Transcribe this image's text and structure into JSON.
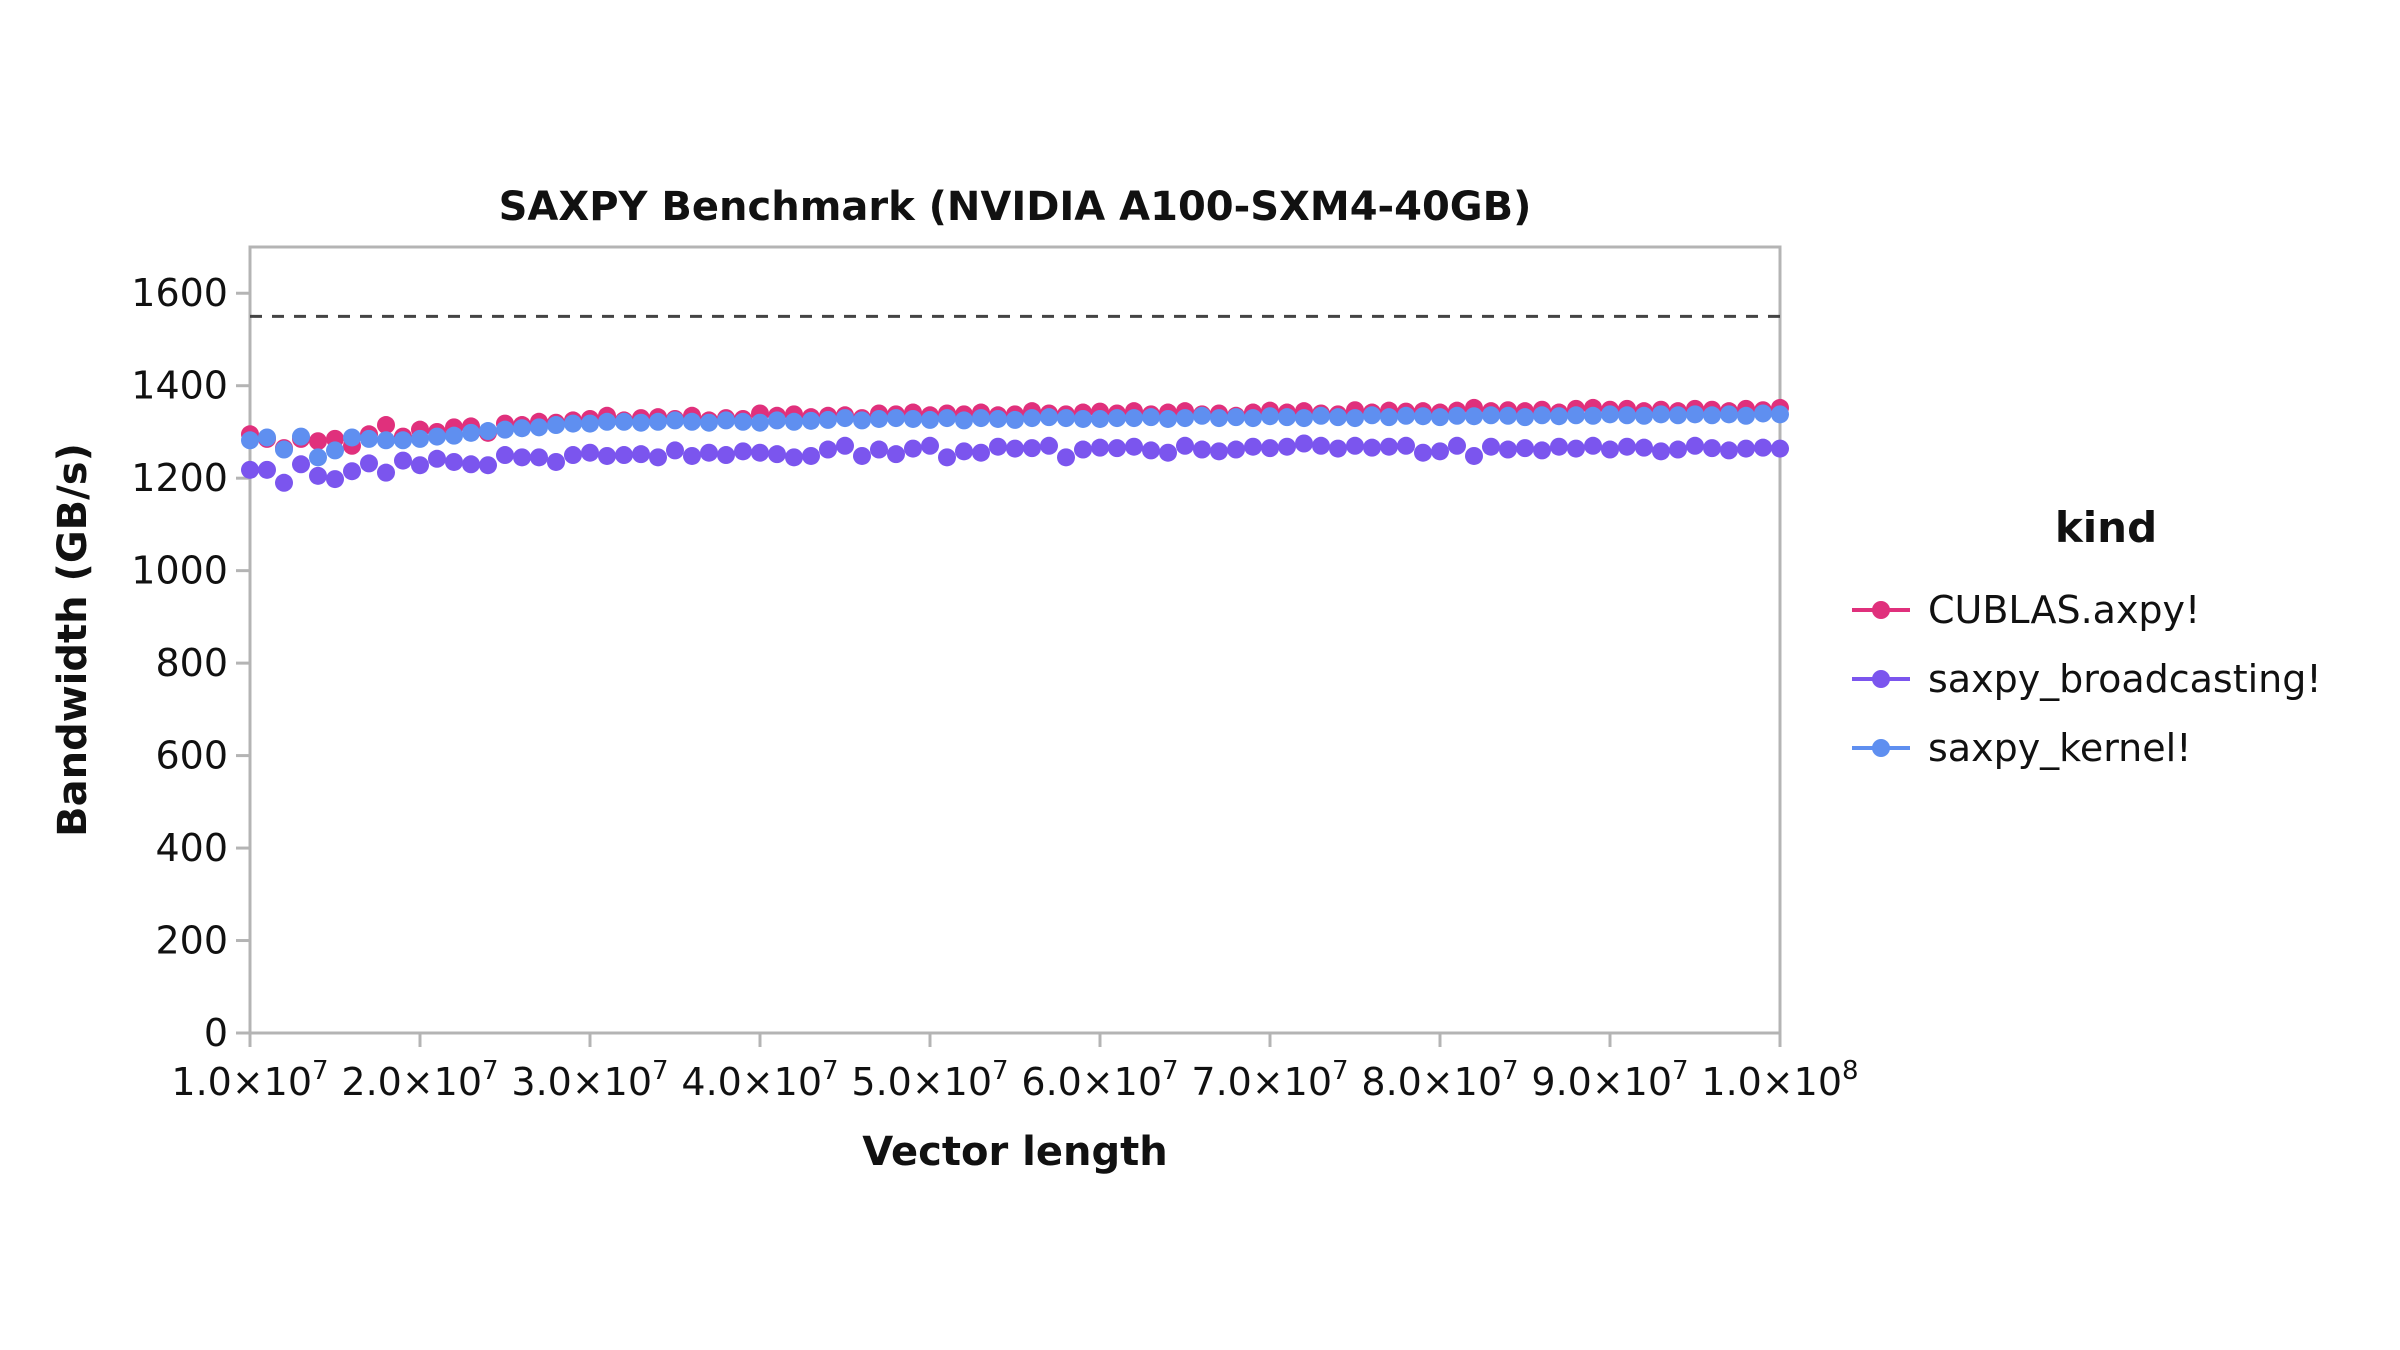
{
  "chart_data": {
    "type": "scatter",
    "title": "SAXPY Benchmark (NVIDIA A100-SXM4-40GB)",
    "xlabel": "Vector length",
    "ylabel": "Bandwidth (GB/s)",
    "xlim": [
      10000000,
      100000000
    ],
    "ylim": [
      0,
      1700
    ],
    "x_ticks": [
      10000000,
      20000000,
      30000000,
      40000000,
      50000000,
      60000000,
      70000000,
      80000000,
      90000000,
      100000000
    ],
    "x_tick_labels": [
      {
        "mantissa": "1.0×10",
        "exp": "7"
      },
      {
        "mantissa": "2.0×10",
        "exp": "7"
      },
      {
        "mantissa": "3.0×10",
        "exp": "7"
      },
      {
        "mantissa": "4.0×10",
        "exp": "7"
      },
      {
        "mantissa": "5.0×10",
        "exp": "7"
      },
      {
        "mantissa": "6.0×10",
        "exp": "7"
      },
      {
        "mantissa": "7.0×10",
        "exp": "7"
      },
      {
        "mantissa": "8.0×10",
        "exp": "7"
      },
      {
        "mantissa": "9.0×10",
        "exp": "7"
      },
      {
        "mantissa": "1.0×10",
        "exp": "8"
      }
    ],
    "y_ticks": [
      0,
      200,
      400,
      600,
      800,
      1000,
      1200,
      1400,
      1600
    ],
    "y_tick_labels": [
      "0",
      "200",
      "400",
      "600",
      "800",
      "1000",
      "1200",
      "1400",
      "1600"
    ],
    "reference_line": {
      "y": 1550,
      "style": "dashed"
    },
    "grid": false,
    "legend": {
      "title": "kind",
      "placement": "right"
    },
    "x": [
      10000000,
      11000000,
      12000000,
      13000000,
      14000000,
      15000000,
      16000000,
      17000000,
      18000000,
      19000000,
      20000000,
      21000000,
      22000000,
      23000000,
      24000000,
      25000000,
      26000000,
      27000000,
      28000000,
      29000000,
      30000000,
      31000000,
      32000000,
      33000000,
      34000000,
      35000000,
      36000000,
      37000000,
      38000000,
      39000000,
      40000000,
      41000000,
      42000000,
      43000000,
      44000000,
      45000000,
      46000000,
      47000000,
      48000000,
      49000000,
      50000000,
      51000000,
      52000000,
      53000000,
      54000000,
      55000000,
      56000000,
      57000000,
      58000000,
      59000000,
      60000000,
      61000000,
      62000000,
      63000000,
      64000000,
      65000000,
      66000000,
      67000000,
      68000000,
      69000000,
      70000000,
      71000000,
      72000000,
      73000000,
      74000000,
      75000000,
      76000000,
      77000000,
      78000000,
      79000000,
      80000000,
      81000000,
      82000000,
      83000000,
      84000000,
      85000000,
      86000000,
      87000000,
      88000000,
      89000000,
      90000000,
      91000000,
      92000000,
      93000000,
      94000000,
      95000000,
      96000000,
      97000000,
      98000000,
      99000000,
      100000000
    ],
    "series": [
      {
        "name": "CUBLAS.axpy!",
        "color": "#e0307c",
        "values": [
          1295,
          1285,
          1265,
          1285,
          1280,
          1285,
          1270,
          1295,
          1315,
          1290,
          1305,
          1300,
          1310,
          1312,
          1298,
          1318,
          1315,
          1322,
          1320,
          1325,
          1328,
          1335,
          1325,
          1330,
          1332,
          1328,
          1335,
          1325,
          1330,
          1328,
          1340,
          1335,
          1338,
          1332,
          1335,
          1336,
          1330,
          1340,
          1338,
          1342,
          1336,
          1340,
          1338,
          1342,
          1336,
          1338,
          1345,
          1340,
          1338,
          1342,
          1344,
          1340,
          1345,
          1338,
          1342,
          1345,
          1338,
          1340,
          1335,
          1342,
          1346,
          1342,
          1345,
          1340,
          1338,
          1347,
          1342,
          1346,
          1344,
          1345,
          1342,
          1346,
          1352,
          1345,
          1347,
          1345,
          1348,
          1342,
          1350,
          1352,
          1348,
          1350,
          1345,
          1348,
          1345,
          1350,
          1348,
          1345,
          1350,
          1347,
          1352
        ]
      },
      {
        "name": "saxpy_broadcasting!",
        "color": "#7b55ee",
        "values": [
          1218,
          1218,
          1190,
          1230,
          1205,
          1198,
          1215,
          1232,
          1212,
          1238,
          1228,
          1242,
          1235,
          1230,
          1228,
          1250,
          1245,
          1245,
          1235,
          1250,
          1255,
          1248,
          1250,
          1252,
          1245,
          1260,
          1248,
          1255,
          1250,
          1258,
          1255,
          1252,
          1245,
          1248,
          1262,
          1270,
          1248,
          1262,
          1252,
          1264,
          1270,
          1245,
          1258,
          1255,
          1268,
          1264,
          1265,
          1270,
          1245,
          1262,
          1266,
          1265,
          1268,
          1260,
          1255,
          1270,
          1262,
          1258,
          1262,
          1268,
          1265,
          1268,
          1275,
          1270,
          1264,
          1270,
          1266,
          1268,
          1270,
          1255,
          1258,
          1270,
          1248,
          1268,
          1262,
          1265,
          1260,
          1268,
          1264,
          1270,
          1262,
          1268,
          1266,
          1258,
          1262,
          1270,
          1265,
          1260,
          1264,
          1266,
          1264
        ]
      },
      {
        "name": "saxpy_kernel!",
        "color": "#5f8ff0",
        "values": [
          1282,
          1288,
          1262,
          1290,
          1245,
          1260,
          1288,
          1285,
          1282,
          1282,
          1285,
          1290,
          1292,
          1298,
          1302,
          1305,
          1308,
          1310,
          1315,
          1318,
          1318,
          1322,
          1322,
          1320,
          1322,
          1325,
          1322,
          1320,
          1325,
          1322,
          1320,
          1325,
          1322,
          1324,
          1326,
          1330,
          1325,
          1328,
          1330,
          1328,
          1326,
          1330,
          1325,
          1330,
          1328,
          1326,
          1330,
          1332,
          1330,
          1328,
          1328,
          1330,
          1330,
          1332,
          1328,
          1330,
          1335,
          1330,
          1332,
          1330,
          1334,
          1332,
          1330,
          1335,
          1332,
          1330,
          1336,
          1332,
          1335,
          1334,
          1332,
          1335,
          1334,
          1336,
          1335,
          1332,
          1336,
          1334,
          1336,
          1335,
          1338,
          1336,
          1335,
          1338,
          1336,
          1338,
          1336,
          1338,
          1335,
          1340,
          1338
        ]
      }
    ]
  }
}
